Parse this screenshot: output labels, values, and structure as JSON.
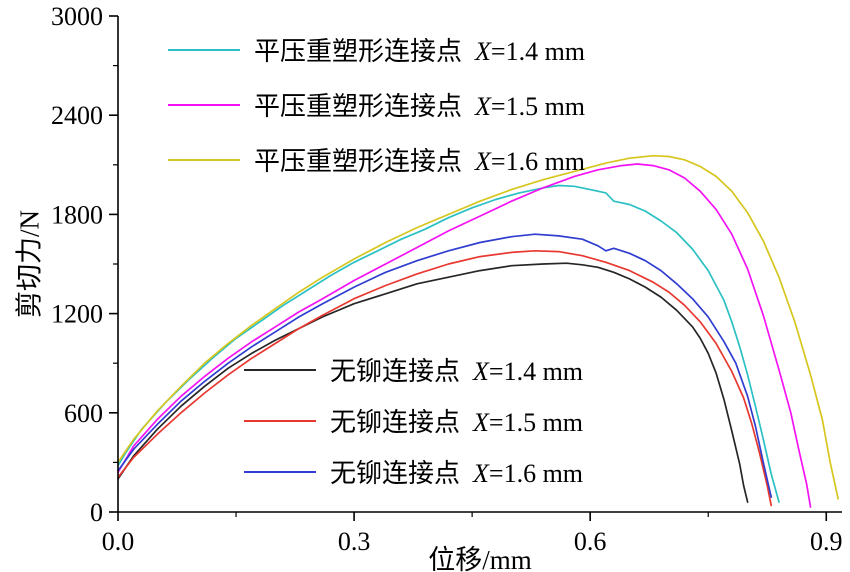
{
  "figure": {
    "background": "#ffffff",
    "axis_color": "#000000"
  },
  "chart_data": {
    "type": "line",
    "title": "",
    "xlabel": "位移/mm",
    "ylabel": "剪切力/N",
    "xlim": [
      0,
      0.92
    ],
    "ylim": [
      0,
      3000
    ],
    "x_ticks": [
      0.0,
      0.3,
      0.6,
      0.9
    ],
    "x_tick_labels": [
      "0.0",
      "0.3",
      "0.6",
      "0.9"
    ],
    "x_minor_ticks": [
      0.15,
      0.45,
      0.75
    ],
    "y_ticks": [
      0,
      600,
      1200,
      1800,
      2400,
      3000
    ],
    "y_tick_labels": [
      "0",
      "600",
      "1200",
      "1800",
      "2400",
      "3000"
    ],
    "y_minor_ticks": [
      300,
      900,
      1500,
      2100,
      2700
    ],
    "grid": false,
    "legends": [
      {
        "container": "legend-top",
        "series": [
          0,
          1,
          2
        ]
      },
      {
        "container": "legend-bottom",
        "series": [
          3,
          4,
          5
        ]
      }
    ],
    "series": [
      {
        "name": "平压重塑形连接点 X=1.4 mm",
        "label": "平压重塑形连接点",
        "var": "X",
        "rest": "=1.4 mm",
        "color": "#2bc0c4",
        "points": [
          [
            0,
            280
          ],
          [
            0.01,
            360
          ],
          [
            0.03,
            500
          ],
          [
            0.06,
            660
          ],
          [
            0.09,
            800
          ],
          [
            0.12,
            930
          ],
          [
            0.15,
            1050
          ],
          [
            0.18,
            1150
          ],
          [
            0.21,
            1250
          ],
          [
            0.24,
            1340
          ],
          [
            0.27,
            1430
          ],
          [
            0.3,
            1510
          ],
          [
            0.33,
            1580
          ],
          [
            0.36,
            1650
          ],
          [
            0.39,
            1710
          ],
          [
            0.42,
            1780
          ],
          [
            0.45,
            1840
          ],
          [
            0.48,
            1890
          ],
          [
            0.51,
            1930
          ],
          [
            0.54,
            1960
          ],
          [
            0.56,
            1975
          ],
          [
            0.58,
            1970
          ],
          [
            0.6,
            1950
          ],
          [
            0.62,
            1930
          ],
          [
            0.63,
            1880
          ],
          [
            0.65,
            1860
          ],
          [
            0.67,
            1820
          ],
          [
            0.69,
            1760
          ],
          [
            0.71,
            1690
          ],
          [
            0.73,
            1590
          ],
          [
            0.75,
            1460
          ],
          [
            0.77,
            1280
          ],
          [
            0.78,
            1150
          ],
          [
            0.79,
            1000
          ],
          [
            0.8,
            830
          ],
          [
            0.81,
            640
          ],
          [
            0.82,
            440
          ],
          [
            0.83,
            230
          ],
          [
            0.84,
            60
          ]
        ]
      },
      {
        "name": "平压重塑形连接点 X=1.5 mm",
        "label": "平压重塑形连接点",
        "var": "X",
        "rest": "=1.5 mm",
        "color": "#f412f4",
        "points": [
          [
            0,
            240
          ],
          [
            0.02,
            400
          ],
          [
            0.05,
            560
          ],
          [
            0.08,
            700
          ],
          [
            0.11,
            820
          ],
          [
            0.14,
            930
          ],
          [
            0.17,
            1030
          ],
          [
            0.2,
            1120
          ],
          [
            0.23,
            1210
          ],
          [
            0.26,
            1290
          ],
          [
            0.3,
            1400
          ],
          [
            0.34,
            1500
          ],
          [
            0.38,
            1600
          ],
          [
            0.42,
            1700
          ],
          [
            0.46,
            1790
          ],
          [
            0.5,
            1880
          ],
          [
            0.54,
            1960
          ],
          [
            0.58,
            2030
          ],
          [
            0.61,
            2070
          ],
          [
            0.64,
            2095
          ],
          [
            0.66,
            2105
          ],
          [
            0.68,
            2095
          ],
          [
            0.7,
            2070
          ],
          [
            0.72,
            2020
          ],
          [
            0.74,
            1940
          ],
          [
            0.76,
            1830
          ],
          [
            0.78,
            1680
          ],
          [
            0.8,
            1470
          ],
          [
            0.82,
            1190
          ],
          [
            0.84,
            860
          ],
          [
            0.855,
            600
          ],
          [
            0.865,
            380
          ],
          [
            0.875,
            170
          ],
          [
            0.88,
            30
          ]
        ]
      },
      {
        "name": "平压重塑形连接点 X=1.6 mm",
        "label": "平压重塑形连接点",
        "var": "X",
        "rest": "=1.6 mm",
        "color": "#d6c61e",
        "points": [
          [
            0,
            300
          ],
          [
            0.02,
            440
          ],
          [
            0.05,
            610
          ],
          [
            0.08,
            760
          ],
          [
            0.11,
            900
          ],
          [
            0.14,
            1020
          ],
          [
            0.17,
            1130
          ],
          [
            0.2,
            1230
          ],
          [
            0.23,
            1330
          ],
          [
            0.26,
            1420
          ],
          [
            0.3,
            1530
          ],
          [
            0.34,
            1630
          ],
          [
            0.38,
            1720
          ],
          [
            0.42,
            1800
          ],
          [
            0.46,
            1880
          ],
          [
            0.5,
            1950
          ],
          [
            0.54,
            2010
          ],
          [
            0.58,
            2060
          ],
          [
            0.62,
            2110
          ],
          [
            0.65,
            2140
          ],
          [
            0.68,
            2155
          ],
          [
            0.7,
            2150
          ],
          [
            0.72,
            2130
          ],
          [
            0.74,
            2090
          ],
          [
            0.76,
            2030
          ],
          [
            0.78,
            1940
          ],
          [
            0.8,
            1810
          ],
          [
            0.82,
            1640
          ],
          [
            0.84,
            1420
          ],
          [
            0.86,
            1150
          ],
          [
            0.88,
            830
          ],
          [
            0.895,
            560
          ],
          [
            0.905,
            300
          ],
          [
            0.915,
            80
          ]
        ]
      },
      {
        "name": "无铆连接点 X=1.4 mm",
        "label": "无铆连接点",
        "var": "X",
        "rest": "=1.4 mm",
        "color": "#262626",
        "points": [
          [
            0,
            200
          ],
          [
            0.02,
            340
          ],
          [
            0.05,
            500
          ],
          [
            0.08,
            640
          ],
          [
            0.11,
            760
          ],
          [
            0.14,
            870
          ],
          [
            0.17,
            960
          ],
          [
            0.2,
            1040
          ],
          [
            0.23,
            1110
          ],
          [
            0.26,
            1180
          ],
          [
            0.3,
            1260
          ],
          [
            0.34,
            1320
          ],
          [
            0.38,
            1380
          ],
          [
            0.42,
            1420
          ],
          [
            0.46,
            1460
          ],
          [
            0.5,
            1490
          ],
          [
            0.54,
            1500
          ],
          [
            0.57,
            1505
          ],
          [
            0.59,
            1495
          ],
          [
            0.61,
            1480
          ],
          [
            0.63,
            1450
          ],
          [
            0.65,
            1410
          ],
          [
            0.67,
            1360
          ],
          [
            0.69,
            1300
          ],
          [
            0.71,
            1220
          ],
          [
            0.73,
            1120
          ],
          [
            0.74,
            1050
          ],
          [
            0.75,
            960
          ],
          [
            0.76,
            840
          ],
          [
            0.77,
            680
          ],
          [
            0.78,
            490
          ],
          [
            0.79,
            290
          ],
          [
            0.795,
            160
          ],
          [
            0.8,
            60
          ]
        ]
      },
      {
        "name": "无铆连接点 X=1.5 mm",
        "label": "无铆连接点",
        "var": "X",
        "rest": "=1.5 mm",
        "color": "#e8382f",
        "points": [
          [
            0,
            210
          ],
          [
            0.02,
            330
          ],
          [
            0.05,
            470
          ],
          [
            0.08,
            600
          ],
          [
            0.11,
            720
          ],
          [
            0.14,
            830
          ],
          [
            0.17,
            930
          ],
          [
            0.2,
            1020
          ],
          [
            0.23,
            1110
          ],
          [
            0.26,
            1190
          ],
          [
            0.3,
            1290
          ],
          [
            0.34,
            1370
          ],
          [
            0.38,
            1440
          ],
          [
            0.42,
            1500
          ],
          [
            0.46,
            1545
          ],
          [
            0.5,
            1570
          ],
          [
            0.53,
            1580
          ],
          [
            0.56,
            1575
          ],
          [
            0.59,
            1550
          ],
          [
            0.62,
            1510
          ],
          [
            0.65,
            1460
          ],
          [
            0.68,
            1390
          ],
          [
            0.7,
            1330
          ],
          [
            0.72,
            1250
          ],
          [
            0.74,
            1150
          ],
          [
            0.76,
            1020
          ],
          [
            0.78,
            850
          ],
          [
            0.795,
            690
          ],
          [
            0.805,
            540
          ],
          [
            0.815,
            360
          ],
          [
            0.825,
            160
          ],
          [
            0.83,
            40
          ]
        ]
      },
      {
        "name": "无铆连接点 X=1.6 mm",
        "label": "无铆连接点",
        "var": "X",
        "rest": "=1.6 mm",
        "color": "#2f3ed0",
        "points": [
          [
            0,
            250
          ],
          [
            0.02,
            380
          ],
          [
            0.05,
            530
          ],
          [
            0.08,
            670
          ],
          [
            0.11,
            790
          ],
          [
            0.14,
            900
          ],
          [
            0.17,
            1000
          ],
          [
            0.2,
            1090
          ],
          [
            0.23,
            1180
          ],
          [
            0.26,
            1260
          ],
          [
            0.3,
            1360
          ],
          [
            0.34,
            1450
          ],
          [
            0.38,
            1520
          ],
          [
            0.42,
            1580
          ],
          [
            0.46,
            1630
          ],
          [
            0.5,
            1665
          ],
          [
            0.53,
            1680
          ],
          [
            0.56,
            1670
          ],
          [
            0.59,
            1650
          ],
          [
            0.61,
            1610
          ],
          [
            0.62,
            1580
          ],
          [
            0.63,
            1595
          ],
          [
            0.65,
            1565
          ],
          [
            0.67,
            1520
          ],
          [
            0.69,
            1460
          ],
          [
            0.71,
            1380
          ],
          [
            0.73,
            1290
          ],
          [
            0.75,
            1180
          ],
          [
            0.77,
            1030
          ],
          [
            0.785,
            900
          ],
          [
            0.8,
            700
          ],
          [
            0.81,
            520
          ],
          [
            0.82,
            300
          ],
          [
            0.83,
            90
          ]
        ]
      }
    ]
  }
}
